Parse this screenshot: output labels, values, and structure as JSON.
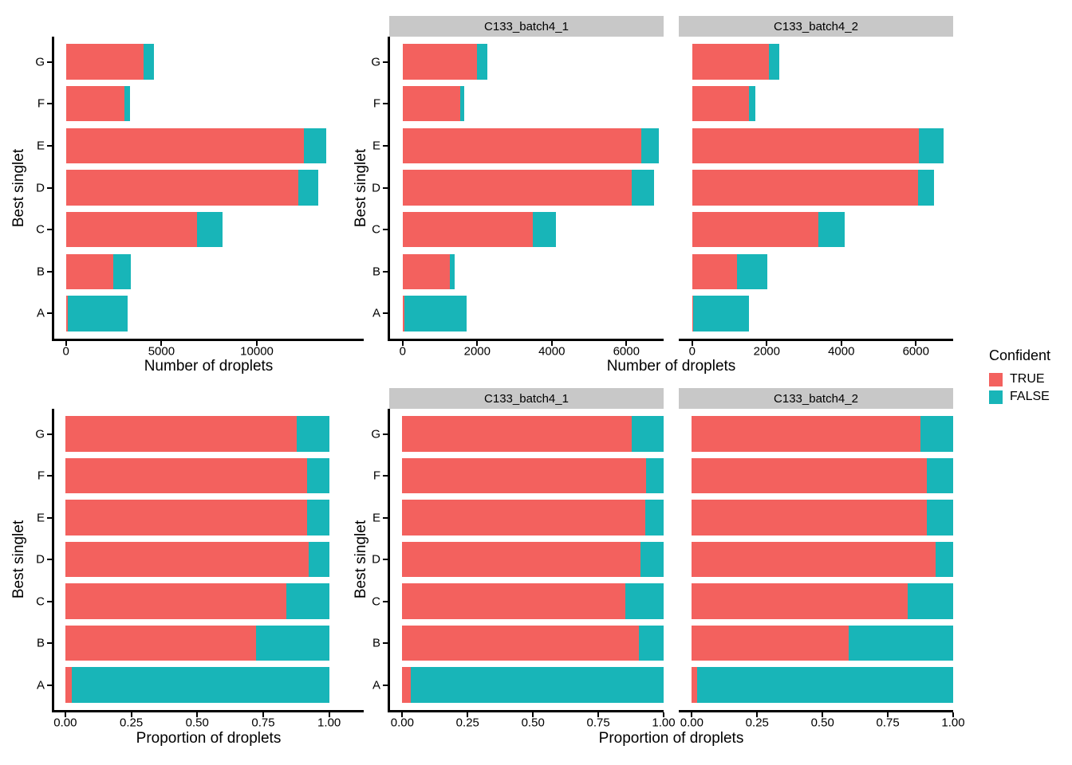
{
  "styles": {
    "bar_true_color": "#F3615E",
    "bar_false_color": "#18B5B8",
    "strip_bg": "#C8C8C8",
    "axis_color": "#000000",
    "text_color": "#000000"
  },
  "legend": {
    "title": "Confident",
    "items": [
      {
        "label": "TRUE",
        "color": "#F3615E"
      },
      {
        "label": "FALSE",
        "color": "#18B5B8"
      }
    ]
  },
  "chart_data": [
    {
      "id": "counts-overall",
      "type": "bar",
      "orientation": "horizontal",
      "stacked": true,
      "xlabel": "Number of droplets",
      "ylabel": "Best singlet",
      "categories_top_to_bottom": [
        "G",
        "F",
        "E",
        "D",
        "C",
        "B",
        "A"
      ],
      "x_tick_labels": [
        "0",
        "5000",
        "10000"
      ],
      "x_tick_values": [
        0,
        5000,
        10000
      ],
      "x_range": [
        -657,
        15598
      ],
      "facets": [
        {
          "label": "",
          "series": [
            {
              "name": "TRUE",
              "values": [
                4050,
                3080,
                12470,
                12190,
                6880,
                2470,
                85
              ]
            },
            {
              "name": "FALSE",
              "values": [
                570,
                280,
                1160,
                1030,
                1320,
                940,
                3150
              ]
            }
          ]
        }
      ]
    },
    {
      "id": "counts-by-sample",
      "type": "bar",
      "orientation": "horizontal",
      "stacked": true,
      "xlabel": "Number of droplets",
      "ylabel": "Best singlet",
      "categories_top_to_bottom": [
        "G",
        "F",
        "E",
        "D",
        "C",
        "B",
        "A"
      ],
      "x_tick_labels": [
        "0",
        "2000",
        "4000",
        "6000"
      ],
      "x_tick_values": [
        0,
        2000,
        4000,
        6000
      ],
      "x_range": [
        -360,
        7000
      ],
      "facets": [
        {
          "label": "C133_batch4_1",
          "series": [
            {
              "name": "TRUE",
              "values": [
                2000,
                1550,
                6400,
                6140,
                3500,
                1260,
                55
              ]
            },
            {
              "name": "FALSE",
              "values": [
                280,
                110,
                480,
                600,
                610,
                130,
                1650
              ]
            }
          ]
        },
        {
          "label": "C133_batch4_2",
          "series": [
            {
              "name": "TRUE",
              "values": [
                2050,
                1530,
                6070,
                6050,
                3380,
                1210,
                30
              ]
            },
            {
              "name": "FALSE",
              "values": [
                290,
                170,
                680,
                430,
                710,
                810,
                1500
              ]
            }
          ]
        }
      ]
    },
    {
      "id": "proportions-overall",
      "type": "bar",
      "orientation": "horizontal",
      "stacked": true,
      "xlabel": "Proportion of droplets",
      "ylabel": "Best singlet",
      "categories_top_to_bottom": [
        "G",
        "F",
        "E",
        "D",
        "C",
        "B",
        "A"
      ],
      "x_tick_labels": [
        "0.00",
        "0.25",
        "0.50",
        "0.75",
        "1.00"
      ],
      "x_tick_values": [
        0,
        0.25,
        0.5,
        0.75,
        1
      ],
      "x_range": [
        -0.045,
        1.131
      ],
      "facets": [
        {
          "label": "",
          "series": [
            {
              "name": "TRUE",
              "values": [
                0.877,
                0.917,
                0.915,
                0.922,
                0.839,
                0.724,
                0.026
              ]
            },
            {
              "name": "FALSE",
              "values": [
                0.123,
                0.083,
                0.085,
                0.078,
                0.161,
                0.276,
                0.974
              ]
            }
          ]
        }
      ]
    },
    {
      "id": "proportions-by-sample",
      "type": "bar",
      "orientation": "horizontal",
      "stacked": true,
      "xlabel": "Proportion of droplets",
      "ylabel": "Best singlet",
      "categories_top_to_bottom": [
        "G",
        "F",
        "E",
        "D",
        "C",
        "B",
        "A"
      ],
      "x_tick_labels": [
        "0.00",
        "0.25",
        "0.50",
        "0.75",
        "1.00"
      ],
      "x_tick_values": [
        0,
        0.25,
        0.5,
        0.75,
        1
      ],
      "x_range": [
        -0.05,
        1.0
      ],
      "facets": [
        {
          "label": "C133_batch4_1",
          "series": [
            {
              "name": "TRUE",
              "values": [
                0.877,
                0.934,
                0.93,
                0.911,
                0.852,
                0.906,
                0.032
              ]
            },
            {
              "name": "FALSE",
              "values": [
                0.123,
                0.066,
                0.07,
                0.089,
                0.148,
                0.094,
                0.968
              ]
            }
          ]
        },
        {
          "label": "C133_batch4_2",
          "series": [
            {
              "name": "TRUE",
              "values": [
                0.876,
                0.9,
                0.899,
                0.934,
                0.826,
                0.599,
                0.02
              ]
            },
            {
              "name": "FALSE",
              "values": [
                0.124,
                0.1,
                0.101,
                0.066,
                0.174,
                0.401,
                0.98
              ]
            }
          ]
        }
      ]
    }
  ]
}
